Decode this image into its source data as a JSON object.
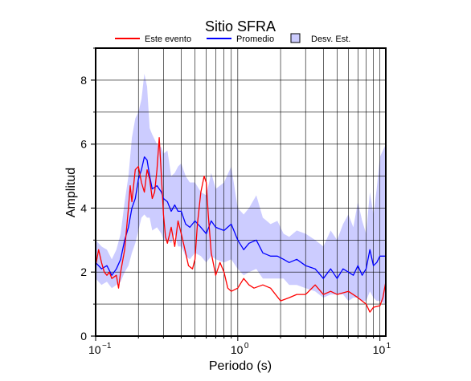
{
  "chart_data": {
    "type": "line",
    "title": "Sitio SFRA",
    "xlabel": "Periodo (s)",
    "ylabel": "Amplitud",
    "x_scale": "log",
    "xlim": [
      0.1,
      11
    ],
    "ylim": [
      0,
      9
    ],
    "grid": true,
    "legend_position": "top-center",
    "x_tick_labels": [
      {
        "value": 0.1,
        "base": "10",
        "exp": "−1"
      },
      {
        "value": 1,
        "base": "10",
        "exp": "0"
      },
      {
        "value": 10,
        "base": "10",
        "exp": "1"
      }
    ],
    "y_ticks": [
      0,
      2,
      4,
      6,
      8
    ],
    "series": [
      {
        "name": "Este evento",
        "color": "#ff0000",
        "x": [
          0.1,
          0.105,
          0.11,
          0.115,
          0.12,
          0.125,
          0.13,
          0.14,
          0.145,
          0.15,
          0.16,
          0.17,
          0.175,
          0.18,
          0.19,
          0.2,
          0.21,
          0.22,
          0.23,
          0.24,
          0.25,
          0.26,
          0.27,
          0.28,
          0.29,
          0.3,
          0.31,
          0.32,
          0.34,
          0.36,
          0.38,
          0.4,
          0.42,
          0.45,
          0.48,
          0.5,
          0.52,
          0.55,
          0.58,
          0.6,
          0.62,
          0.65,
          0.7,
          0.75,
          0.8,
          0.85,
          0.9,
          1.0,
          1.1,
          1.2,
          1.3,
          1.5,
          1.7,
          2.0,
          2.3,
          2.6,
          3.0,
          3.5,
          4.0,
          4.5,
          5.0,
          6.0,
          7.0,
          8.0,
          8.5,
          9.0,
          10.0,
          10.5,
          11.0
        ],
        "values": [
          2.2,
          2.7,
          2.3,
          2.0,
          1.9,
          2.0,
          1.8,
          1.9,
          1.5,
          2.0,
          2.7,
          4.0,
          4.7,
          4.2,
          5.2,
          5.3,
          4.8,
          4.5,
          5.2,
          4.9,
          4.3,
          4.5,
          5.2,
          6.2,
          5.0,
          3.8,
          3.1,
          2.9,
          3.4,
          2.8,
          3.6,
          3.2,
          2.8,
          2.2,
          2.1,
          2.4,
          3.5,
          4.5,
          5.0,
          4.8,
          3.8,
          2.6,
          1.9,
          2.3,
          2.0,
          1.5,
          1.4,
          1.5,
          1.8,
          1.6,
          1.5,
          1.6,
          1.5,
          1.1,
          1.2,
          1.3,
          1.3,
          1.6,
          1.3,
          1.4,
          1.3,
          1.4,
          1.2,
          1.0,
          0.75,
          0.9,
          0.95,
          1.2,
          1.7
        ]
      },
      {
        "name": "Promedio",
        "color": "#0000ff",
        "x": [
          0.1,
          0.11,
          0.12,
          0.13,
          0.14,
          0.15,
          0.16,
          0.17,
          0.18,
          0.19,
          0.2,
          0.21,
          0.22,
          0.23,
          0.24,
          0.25,
          0.27,
          0.29,
          0.3,
          0.32,
          0.34,
          0.36,
          0.38,
          0.4,
          0.43,
          0.46,
          0.5,
          0.55,
          0.6,
          0.65,
          0.7,
          0.8,
          0.9,
          1.0,
          1.1,
          1.2,
          1.35,
          1.5,
          1.7,
          1.9,
          2.1,
          2.3,
          2.6,
          3.0,
          3.5,
          4.0,
          4.5,
          5.0,
          5.5,
          6.0,
          6.5,
          7.0,
          7.5,
          8.0,
          8.5,
          9.0,
          9.5,
          10.0,
          11.0
        ],
        "values": [
          2.3,
          2.1,
          2.2,
          1.9,
          2.1,
          2.4,
          3.0,
          3.4,
          4.0,
          4.3,
          4.9,
          5.2,
          5.6,
          5.5,
          5.0,
          4.6,
          4.7,
          4.5,
          4.3,
          4.2,
          3.9,
          4.1,
          3.9,
          3.9,
          3.5,
          3.4,
          3.6,
          3.4,
          3.2,
          3.6,
          3.4,
          3.3,
          3.5,
          3.0,
          2.7,
          2.9,
          3.0,
          2.6,
          2.5,
          2.5,
          2.4,
          2.3,
          2.4,
          2.2,
          2.1,
          1.8,
          2.1,
          1.8,
          2.1,
          2.0,
          1.9,
          2.2,
          1.9,
          2.1,
          2.7,
          2.2,
          2.3,
          2.5,
          2.5
        ]
      }
    ],
    "band": {
      "name": "Desv. Est.",
      "color": "#ccccff",
      "x": [
        0.1,
        0.11,
        0.12,
        0.13,
        0.14,
        0.15,
        0.16,
        0.17,
        0.18,
        0.19,
        0.2,
        0.21,
        0.22,
        0.23,
        0.24,
        0.25,
        0.27,
        0.29,
        0.3,
        0.32,
        0.34,
        0.36,
        0.38,
        0.4,
        0.43,
        0.46,
        0.5,
        0.55,
        0.6,
        0.65,
        0.7,
        0.8,
        0.9,
        1.0,
        1.1,
        1.2,
        1.35,
        1.5,
        1.7,
        1.9,
        2.1,
        2.3,
        2.6,
        3.0,
        3.5,
        4.0,
        4.5,
        5.0,
        5.5,
        6.0,
        6.5,
        7.0,
        7.5,
        8.0,
        8.5,
        9.0,
        9.5,
        10.0,
        11.0
      ],
      "upper": [
        3.0,
        2.8,
        2.7,
        2.4,
        2.7,
        3.2,
        4.2,
        5.0,
        6.2,
        6.8,
        7.0,
        7.4,
        8.2,
        7.8,
        6.5,
        6.3,
        6.0,
        5.9,
        5.7,
        5.8,
        5.0,
        5.1,
        5.3,
        5.4,
        5.0,
        4.8,
        4.8,
        4.5,
        4.4,
        5.1,
        4.6,
        4.8,
        5.3,
        4.0,
        3.8,
        4.0,
        4.4,
        3.7,
        3.5,
        3.6,
        3.2,
        3.1,
        3.3,
        3.2,
        3.0,
        2.8,
        3.3,
        3.0,
        3.5,
        3.8,
        3.4,
        4.2,
        3.6,
        3.2,
        4.5,
        3.8,
        4.6,
        5.6,
        6.0
      ],
      "lower": [
        1.8,
        1.6,
        1.7,
        1.5,
        1.6,
        1.7,
        2.0,
        2.2,
        2.6,
        2.9,
        3.3,
        3.7,
        3.8,
        3.7,
        3.7,
        3.3,
        3.4,
        3.2,
        3.0,
        3.0,
        2.9,
        3.2,
        2.8,
        2.8,
        2.5,
        2.4,
        2.6,
        2.5,
        2.3,
        2.5,
        2.4,
        2.3,
        2.4,
        2.1,
        1.9,
        2.0,
        2.1,
        1.8,
        1.8,
        1.8,
        1.8,
        1.6,
        1.6,
        1.5,
        1.4,
        1.2,
        1.3,
        1.3,
        1.3,
        1.1,
        1.2,
        1.2,
        1.1,
        1.1,
        1.4,
        1.2,
        1.1,
        1.1,
        1.0
      ]
    }
  }
}
